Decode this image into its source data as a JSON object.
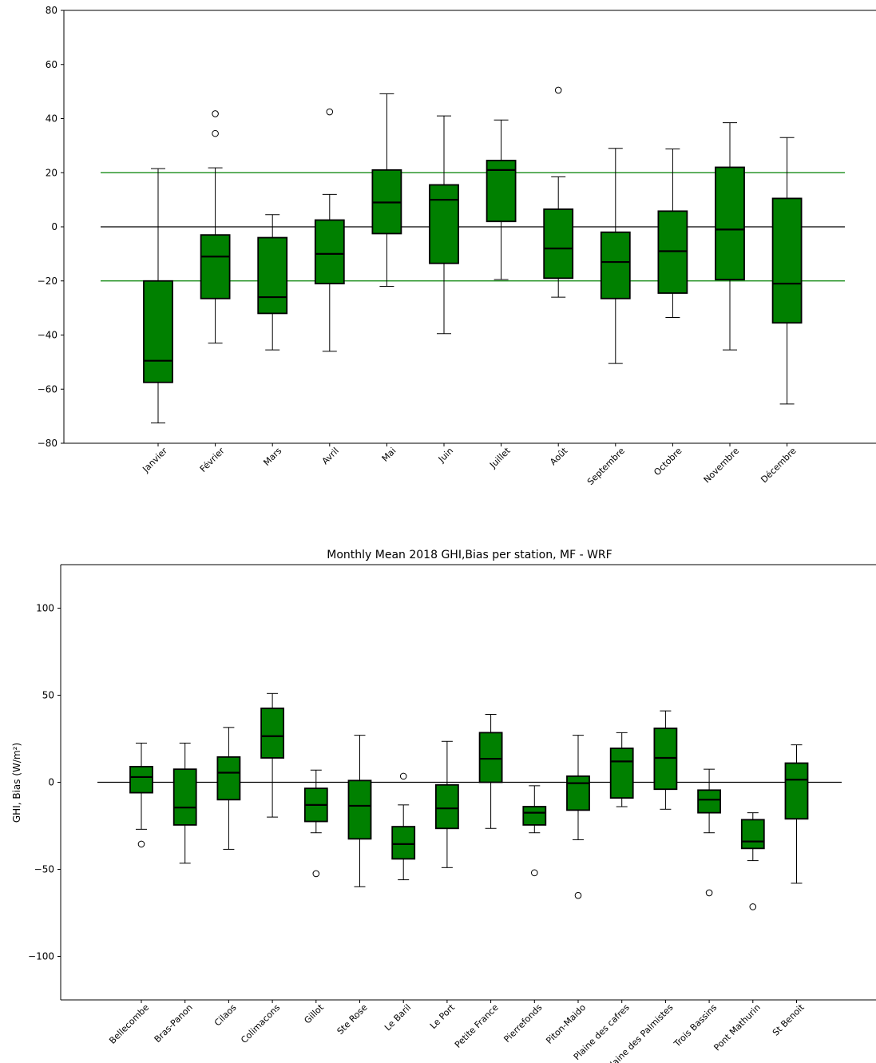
{
  "colors": {
    "box_fill": "#008000",
    "ref_line_green": "#008000",
    "ref_line_black": "#000000"
  },
  "chart_data": [
    {
      "type": "box",
      "title": "",
      "xlabel": "",
      "ylabel": "",
      "ylim": [
        -80,
        80
      ],
      "yticks": [
        80,
        60,
        40,
        20,
        0,
        -20,
        -40,
        -60,
        -80
      ],
      "ytick_labels": [
        "80",
        "60",
        "40",
        "20",
        "0",
        "−20",
        "−40",
        "−60",
        "−80"
      ],
      "reference_lines": [
        {
          "y": 20,
          "color": "#008000"
        },
        {
          "y": 0,
          "color": "#000000"
        },
        {
          "y": -20,
          "color": "#008000"
        }
      ],
      "categories": [
        "Janvier",
        "Février",
        "Mars",
        "Avril",
        "Mai",
        "Juin",
        "Juillet",
        "Août",
        "Septembre",
        "Octobre",
        "Novembre",
        "Décembre"
      ],
      "boxes": [
        {
          "whislo": -72.5,
          "q1": -57.5,
          "med": -49.5,
          "q3": -20,
          "whishi": 21.5,
          "fliers": []
        },
        {
          "whislo": -43,
          "q1": -26.5,
          "med": -11,
          "q3": -3,
          "whishi": 21.8,
          "fliers": [
            41.8,
            34.5
          ]
        },
        {
          "whislo": -45.5,
          "q1": -32,
          "med": -26,
          "q3": -4,
          "whishi": 4.5,
          "fliers": []
        },
        {
          "whislo": -46,
          "q1": -21,
          "med": -10,
          "q3": 2.5,
          "whishi": 12,
          "fliers": [
            42.5
          ]
        },
        {
          "whislo": -22,
          "q1": -2.5,
          "med": 9,
          "q3": 21,
          "whishi": 49.2,
          "fliers": []
        },
        {
          "whislo": -39.5,
          "q1": -13.5,
          "med": 10,
          "q3": 15.5,
          "whishi": 41,
          "fliers": []
        },
        {
          "whislo": -19.5,
          "q1": 2,
          "med": 21,
          "q3": 24.5,
          "whishi": 39.5,
          "fliers": []
        },
        {
          "whislo": -26,
          "q1": -19,
          "med": -8,
          "q3": 6.5,
          "whishi": 18.5,
          "fliers": [
            50.5
          ]
        },
        {
          "whislo": -50.5,
          "q1": -26.5,
          "med": -13,
          "q3": -2,
          "whishi": 29,
          "fliers": []
        },
        {
          "whislo": -33.5,
          "q1": -24.5,
          "med": -9,
          "q3": 5.8,
          "whishi": 28.8,
          "fliers": []
        },
        {
          "whislo": -45.5,
          "q1": -19.5,
          "med": -1,
          "q3": 22,
          "whishi": 38.5,
          "fliers": []
        },
        {
          "whislo": -65.5,
          "q1": -35.5,
          "med": -21,
          "q3": 10.5,
          "whishi": 33,
          "fliers": []
        }
      ]
    },
    {
      "type": "box",
      "title": "Monthly Mean 2018 GHI,Bias per station, MF - WRF",
      "xlabel": "",
      "ylabel": "GHI, Bias (W/m²)",
      "ylim": [
        -125,
        125
      ],
      "yticks": [
        100,
        50,
        0,
        -50,
        -100
      ],
      "ytick_labels": [
        "100",
        "50",
        "0",
        "−50",
        "−100"
      ],
      "reference_lines": [
        {
          "y": 0,
          "color": "#000000"
        }
      ],
      "categories": [
        "Bellecombe",
        "Bras-Panon",
        "Cilaos",
        "Colimacons",
        "Gillot",
        "Ste Rose",
        "Le Baril",
        "Le Port",
        "Petite France",
        "Pierrefonds",
        "Piton-Maido",
        "Plaine des cafres",
        "Plaine des Palmistes",
        "Trois Bassins",
        "Pont Mathurin",
        "St Benoit"
      ],
      "boxes": [
        {
          "whislo": -27,
          "q1": -6,
          "med": 3,
          "q3": 9,
          "whishi": 22.5,
          "fliers": [
            -35.5
          ]
        },
        {
          "whislo": -46.5,
          "q1": -24.5,
          "med": -14.5,
          "q3": 7.5,
          "whishi": 22.5,
          "fliers": []
        },
        {
          "whislo": -38.5,
          "q1": -10,
          "med": 5.5,
          "q3": 14.5,
          "whishi": 31.5,
          "fliers": []
        },
        {
          "whislo": -20,
          "q1": 14,
          "med": 26.5,
          "q3": 42.5,
          "whishi": 51,
          "fliers": []
        },
        {
          "whislo": -29,
          "q1": -22.5,
          "med": -13,
          "q3": -3.5,
          "whishi": 7,
          "fliers": [
            -52.5
          ]
        },
        {
          "whislo": -60,
          "q1": -32.5,
          "med": -13.5,
          "q3": 1,
          "whishi": 27,
          "fliers": []
        },
        {
          "whislo": -56,
          "q1": -44,
          "med": -35.5,
          "q3": -25.5,
          "whishi": -13,
          "fliers": [
            3.5
          ]
        },
        {
          "whislo": -49,
          "q1": -26.5,
          "med": -15,
          "q3": -1.5,
          "whishi": 23.5,
          "fliers": []
        },
        {
          "whislo": -26.5,
          "q1": 0,
          "med": 13.5,
          "q3": 28.5,
          "whishi": 39,
          "fliers": []
        },
        {
          "whislo": -29,
          "q1": -24.5,
          "med": -17.5,
          "q3": -14,
          "whishi": -2,
          "fliers": [
            -52
          ]
        },
        {
          "whislo": -33,
          "q1": -16,
          "med": -0.5,
          "q3": 3.5,
          "whishi": 27,
          "fliers": [
            -65
          ]
        },
        {
          "whislo": -14,
          "q1": -9,
          "med": 12,
          "q3": 19.5,
          "whishi": 28.5,
          "fliers": []
        },
        {
          "whislo": -15.5,
          "q1": -4,
          "med": 14,
          "q3": 31,
          "whishi": 41,
          "fliers": []
        },
        {
          "whislo": -29,
          "q1": -17.5,
          "med": -10,
          "q3": -4.5,
          "whishi": 7.5,
          "fliers": [
            -63.5
          ]
        },
        {
          "whislo": -45,
          "q1": -38,
          "med": -34,
          "q3": -21.5,
          "whishi": -17.5,
          "fliers": [
            -71.5
          ]
        },
        {
          "whislo": -58,
          "q1": -21,
          "med": 1.5,
          "q3": 11,
          "whishi": 21.5,
          "fliers": []
        }
      ]
    }
  ]
}
